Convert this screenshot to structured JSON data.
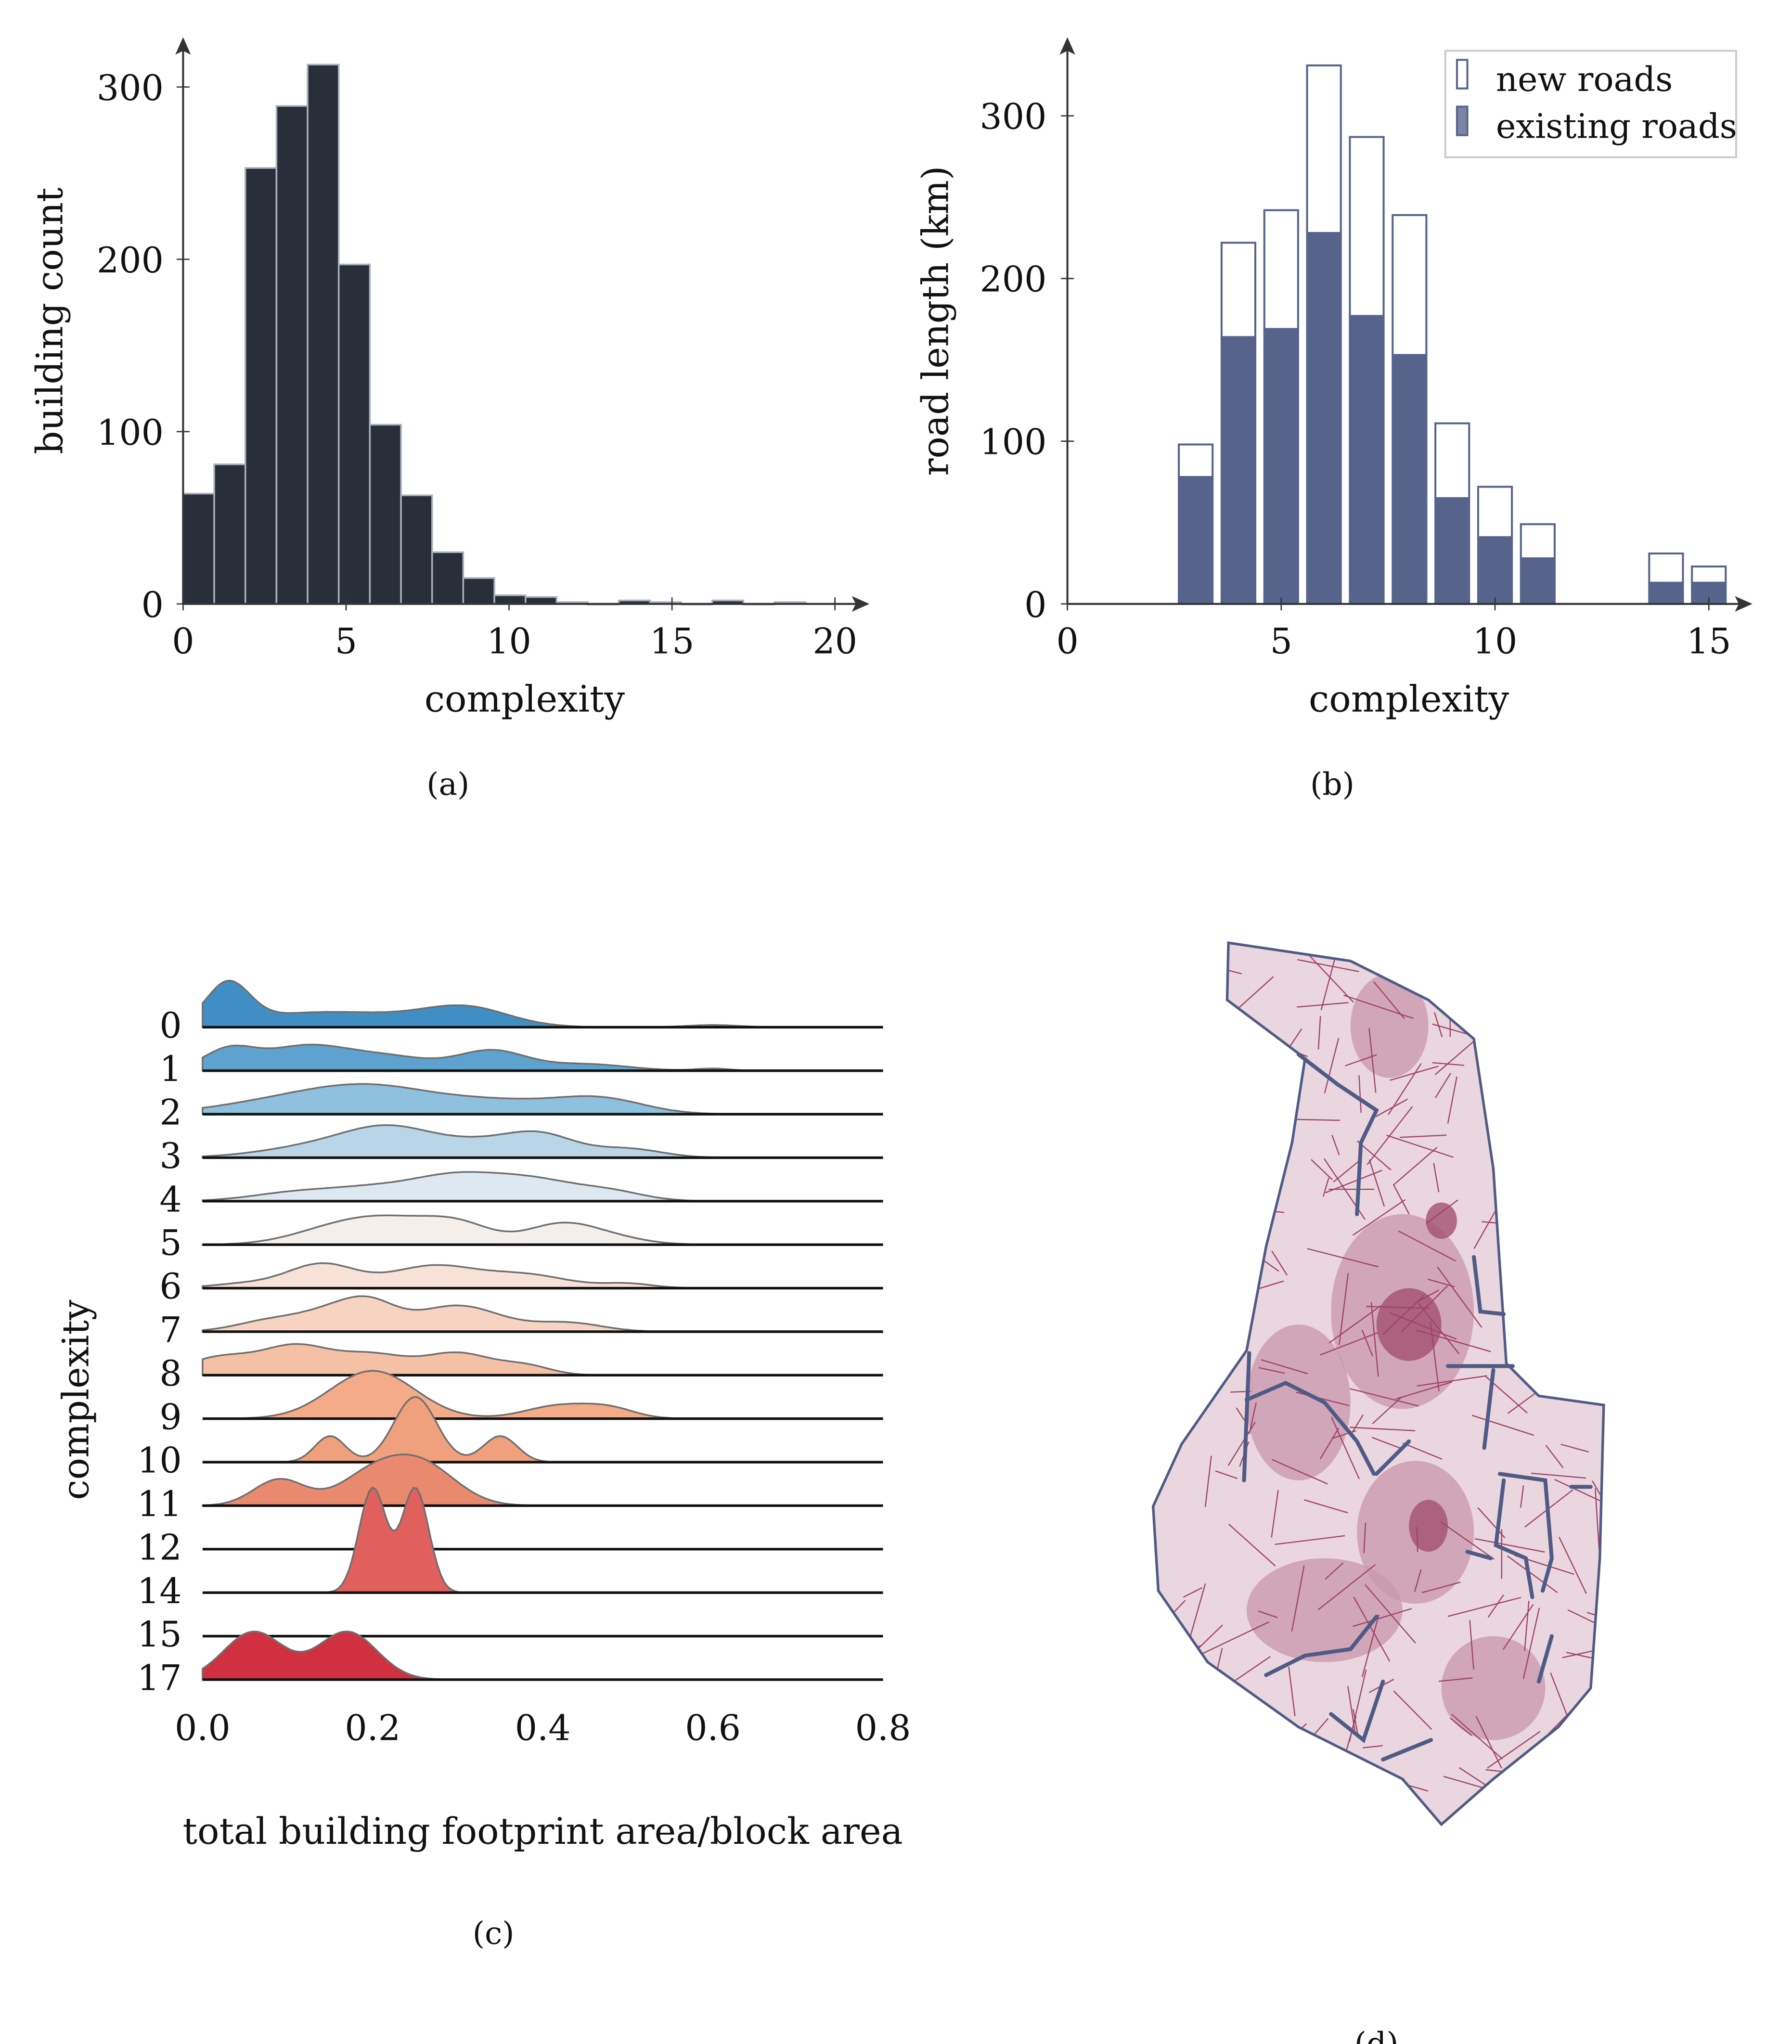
{
  "captions": {
    "a": "(a)",
    "b": "(b)",
    "c": "(c)",
    "d": "(d)"
  },
  "chart_data": [
    {
      "id": "a",
      "type": "bar",
      "title": "",
      "xlabel": "complexity",
      "ylabel": "building count",
      "xlim": [
        0,
        20.5
      ],
      "ylim": [
        0,
        340
      ],
      "xticks": [
        "0",
        "5",
        "10",
        "15",
        "20"
      ],
      "yticks": [
        "0",
        "100",
        "200",
        "300"
      ],
      "bin_width": 0.955,
      "bin_starts": [
        0,
        0.955,
        1.91,
        2.865,
        3.82,
        4.775,
        5.73,
        6.685,
        7.64,
        8.595,
        9.55,
        10.505,
        11.46,
        12.415,
        13.37,
        14.325,
        15.28,
        16.235,
        17.19,
        18.145
      ],
      "values": [
        64,
        81,
        253,
        289,
        313,
        197,
        104,
        63,
        30,
        15,
        5,
        4,
        1,
        0,
        2,
        1,
        0,
        2,
        0,
        1
      ],
      "colors": {
        "fill": "#282f39",
        "edge": "#a9b0bc"
      }
    },
    {
      "id": "b",
      "type": "bar",
      "stacked": true,
      "xlabel": "complexity",
      "ylabel": "road length (km)",
      "xlim": [
        0,
        16
      ],
      "ylim": [
        0,
        345
      ],
      "xticks": [
        "0",
        "5",
        "10",
        "15"
      ],
      "yticks": [
        "0",
        "100",
        "200",
        "300"
      ],
      "categories": [
        3,
        4,
        5,
        6,
        7,
        8,
        9,
        10,
        11,
        14,
        15
      ],
      "series": [
        {
          "name": "existing roads",
          "values": [
            78,
            164,
            169,
            228,
            177,
            153,
            65,
            41,
            28,
            13,
            13
          ]
        },
        {
          "name": "new roads",
          "values": [
            20,
            58,
            73,
            103,
            110,
            86,
            46,
            31,
            21,
            18,
            10
          ]
        }
      ],
      "totals": [
        98,
        222,
        242,
        331,
        287,
        239,
        111,
        72,
        49,
        31,
        23
      ],
      "legend": {
        "position": "top-right",
        "entries": [
          "new roads",
          "existing roads"
        ]
      },
      "colors": {
        "existing": "#56648b",
        "edge": "#56648b",
        "new": "#ffffff"
      }
    },
    {
      "id": "c",
      "type": "area",
      "subtype": "ridgeline",
      "xlabel": "total building footprint area/block area",
      "ylabel": "complexity",
      "xlim": [
        0,
        0.8
      ],
      "xticks": [
        "0.0",
        "0.2",
        "0.4",
        "0.6",
        "0.8"
      ],
      "rows": [
        {
          "label": "0",
          "color": "#3f8fc4",
          "peaks": [
            [
              0.03,
              0.025,
              0.9
            ],
            [
              0.15,
              0.1,
              0.35
            ],
            [
              0.31,
              0.05,
              0.4
            ],
            [
              0.6,
              0.03,
              0.05
            ]
          ]
        },
        {
          "label": "1",
          "color": "#5ea3cf",
          "peaks": [
            [
              0.03,
              0.03,
              0.45
            ],
            [
              0.12,
              0.05,
              0.55
            ],
            [
              0.22,
              0.05,
              0.3
            ],
            [
              0.34,
              0.04,
              0.45
            ],
            [
              0.45,
              0.05,
              0.15
            ],
            [
              0.6,
              0.02,
              0.05
            ]
          ]
        },
        {
          "label": "2",
          "color": "#8fc0de",
          "peaks": [
            [
              0.1,
              0.08,
              0.3
            ],
            [
              0.2,
              0.07,
              0.5
            ],
            [
              0.35,
              0.08,
              0.3
            ],
            [
              0.47,
              0.05,
              0.3
            ]
          ]
        },
        {
          "label": "3",
          "color": "#b8d6e8",
          "peaks": [
            [
              0.15,
              0.07,
              0.3
            ],
            [
              0.22,
              0.05,
              0.5
            ],
            [
              0.33,
              0.06,
              0.35
            ],
            [
              0.4,
              0.04,
              0.4
            ],
            [
              0.5,
              0.04,
              0.2
            ]
          ]
        },
        {
          "label": "4",
          "color": "#dde8f0",
          "peaks": [
            [
              0.1,
              0.05,
              0.15
            ],
            [
              0.2,
              0.06,
              0.3
            ],
            [
              0.3,
              0.05,
              0.5
            ],
            [
              0.39,
              0.05,
              0.45
            ],
            [
              0.48,
              0.04,
              0.2
            ]
          ]
        },
        {
          "label": "5",
          "color": "#f5efec",
          "peaks": [
            [
              0.15,
              0.05,
              0.3
            ],
            [
              0.22,
              0.05,
              0.5
            ],
            [
              0.3,
              0.04,
              0.45
            ],
            [
              0.42,
              0.04,
              0.45
            ],
            [
              0.48,
              0.04,
              0.15
            ]
          ]
        },
        {
          "label": "6",
          "color": "#f8e2d8",
          "peaks": [
            [
              0.05,
              0.04,
              0.1
            ],
            [
              0.14,
              0.04,
              0.55
            ],
            [
              0.27,
              0.05,
              0.5
            ],
            [
              0.38,
              0.05,
              0.3
            ],
            [
              0.5,
              0.03,
              0.1
            ]
          ]
        },
        {
          "label": "7",
          "color": "#f7d3c2",
          "peaks": [
            [
              0.08,
              0.04,
              0.25
            ],
            [
              0.16,
              0.04,
              0.5
            ],
            [
              0.2,
              0.03,
              0.4
            ],
            [
              0.3,
              0.05,
              0.6
            ],
            [
              0.43,
              0.04,
              0.2
            ]
          ]
        },
        {
          "label": "8",
          "color": "#f5c1a6",
          "peaks": [
            [
              0.02,
              0.04,
              0.4
            ],
            [
              0.11,
              0.04,
              0.65
            ],
            [
              0.2,
              0.04,
              0.45
            ],
            [
              0.3,
              0.04,
              0.5
            ],
            [
              0.38,
              0.03,
              0.2
            ]
          ]
        },
        {
          "label": "9",
          "color": "#f3ab88",
          "peaks": [
            [
              0.2,
              0.05,
              1.1
            ],
            [
              0.42,
              0.04,
              0.3
            ],
            [
              0.48,
              0.03,
              0.2
            ]
          ]
        },
        {
          "label": "10",
          "color": "#efa07c",
          "peaks": [
            [
              0.15,
              0.018,
              0.6
            ],
            [
              0.25,
              0.025,
              1.5
            ],
            [
              0.35,
              0.02,
              0.6
            ]
          ]
        },
        {
          "label": "11",
          "color": "#e98a6f",
          "peaks": [
            [
              0.09,
              0.03,
              0.6
            ],
            [
              0.2,
              0.04,
              0.7
            ],
            [
              0.26,
              0.04,
              0.85
            ]
          ]
        },
        {
          "label": "12",
          "color": "#e46a5e",
          "peaks": []
        },
        {
          "label": "14",
          "color": "#e0605d",
          "peaks": [
            [
              0.2,
              0.016,
              2.4
            ],
            [
              0.25,
              0.016,
              2.4
            ]
          ]
        },
        {
          "label": "15",
          "color": "#d94350",
          "peaks": []
        },
        {
          "label": "17",
          "color": "#d0303f",
          "peaks": [
            [
              0.06,
              0.035,
              1.1
            ],
            [
              0.17,
              0.035,
              1.1
            ]
          ]
        }
      ]
    }
  ],
  "map": {
    "type": "map",
    "colors": {
      "base": "#ead6de",
      "mid": "#c99aae",
      "dark": "#a2506f",
      "outline": "#4f5b86",
      "roads": "#4f5b86",
      "cells": "#a0426a"
    }
  }
}
